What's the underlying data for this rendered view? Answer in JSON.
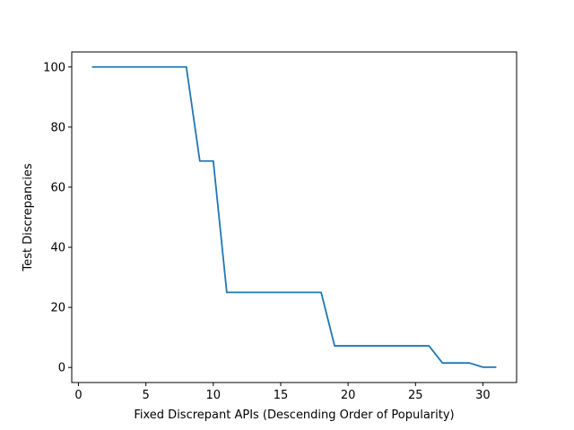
{
  "chart_data": {
    "type": "line",
    "title": "",
    "xlabel": "Fixed Discrepant APIs (Descending Order of Popularity)",
    "ylabel": "Test Discrepancies",
    "xlim": [
      -0.5,
      32.5
    ],
    "ylim": [
      -5,
      105
    ],
    "xticks": [
      0,
      5,
      10,
      15,
      20,
      25,
      30
    ],
    "yticks": [
      0,
      20,
      40,
      60,
      80,
      100
    ],
    "grid": false,
    "series": [
      {
        "color": "#1f77b4",
        "x": [
          1,
          2,
          3,
          4,
          5,
          6,
          7,
          8,
          9,
          10,
          11,
          12,
          13,
          14,
          15,
          16,
          17,
          18,
          19,
          20,
          21,
          22,
          23,
          24,
          25,
          26,
          27,
          28,
          29,
          30,
          31
        ],
        "y": [
          100,
          100,
          100,
          100,
          100,
          100,
          100,
          100,
          68.7,
          68.7,
          25.0,
          25.0,
          25.0,
          25.0,
          25.0,
          25.0,
          25.0,
          25.0,
          7.2,
          7.2,
          7.2,
          7.2,
          7.2,
          7.2,
          7.2,
          7.2,
          1.5,
          1.5,
          1.5,
          0.1,
          0.1
        ]
      }
    ]
  }
}
